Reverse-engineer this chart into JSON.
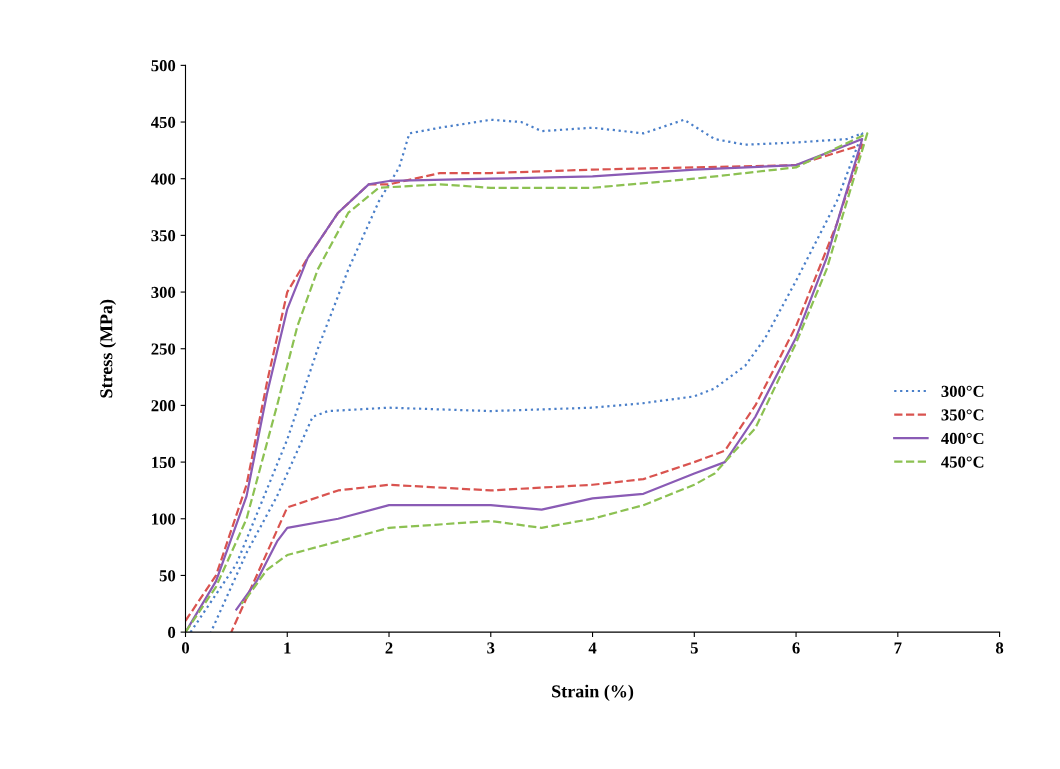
{
  "chart_data": {
    "type": "line",
    "xlabel": "Strain (%)",
    "ylabel": "Stress (MPa)",
    "xlim": [
      0,
      8
    ],
    "ylim": [
      0,
      500
    ],
    "xticks": [
      0,
      1,
      2,
      3,
      4,
      5,
      6,
      7,
      8
    ],
    "yticks": [
      0,
      50,
      100,
      150,
      200,
      250,
      300,
      350,
      400,
      450,
      500
    ],
    "grid": false,
    "legend": "right",
    "marker": "none",
    "series": [
      {
        "name": "300°C",
        "color": "#4a7fc9",
        "line_style": "dotted",
        "x": [
          0.05,
          0.5,
          1.0,
          1.3,
          1.6,
          1.9,
          2.1,
          2.2,
          2.5,
          3.0,
          3.3,
          3.5,
          4.0,
          4.5,
          4.9,
          5.2,
          5.5,
          6.0,
          6.5,
          6.65,
          6.4,
          6.0,
          5.7,
          5.5,
          5.2,
          5.0,
          4.5,
          4.0,
          3.0,
          2.0,
          1.4,
          1.25,
          1.1,
          0.9,
          0.6,
          0.4,
          0.25
        ],
        "values": [
          0,
          60,
          170,
          250,
          320,
          380,
          410,
          440,
          445,
          452,
          450,
          442,
          445,
          440,
          452,
          435,
          430,
          432,
          435,
          440,
          380,
          310,
          260,
          235,
          215,
          208,
          202,
          198,
          195,
          198,
          195,
          190,
          160,
          120,
          70,
          30,
          0
        ]
      },
      {
        "name": "350°C",
        "color": "#d9534f",
        "line_style": "dashed",
        "x": [
          0,
          0.3,
          0.6,
          0.8,
          1.0,
          1.2,
          1.5,
          1.8,
          2.0,
          2.5,
          3,
          4,
          5,
          6,
          6.65,
          6.4,
          6.0,
          5.6,
          5.3,
          5.0,
          4.5,
          4,
          3,
          2.0,
          1.5,
          1.0,
          0.9,
          0.7,
          0.5,
          0.45
        ],
        "values": [
          10,
          50,
          130,
          220,
          300,
          330,
          370,
          395,
          395,
          405,
          405,
          408,
          410,
          412,
          430,
          360,
          270,
          200,
          160,
          150,
          135,
          130,
          125,
          130,
          125,
          110,
          90,
          50,
          10,
          0
        ]
      },
      {
        "name": "400°C",
        "color": "#8a5bb5",
        "line_style": "solid",
        "x": [
          0,
          0.3,
          0.6,
          0.8,
          1.0,
          1.2,
          1.5,
          1.8,
          2.0,
          3,
          4,
          5,
          6,
          6.65,
          6.3,
          6.0,
          5.6,
          5.3,
          5.0,
          4.5,
          4.0,
          3.5,
          3.0,
          2.0,
          1.5,
          1.0,
          0.9,
          0.7,
          0.5
        ],
        "values": [
          0,
          45,
          120,
          210,
          285,
          330,
          370,
          395,
          398,
          400,
          402,
          408,
          412,
          435,
          330,
          260,
          190,
          150,
          140,
          122,
          118,
          108,
          112,
          112,
          100,
          92,
          80,
          45,
          20
        ]
      },
      {
        "name": "450°C",
        "color": "#8cc152",
        "line_style": "dashed",
        "x": [
          0,
          0.3,
          0.6,
          0.9,
          1.1,
          1.3,
          1.6,
          1.9,
          2.5,
          3,
          4,
          5,
          6,
          6.7,
          6.3,
          6.0,
          5.6,
          5.2,
          5.0,
          4.5,
          4.0,
          3.5,
          3.0,
          2.0,
          1.5,
          1.0,
          0.8,
          0.6,
          0.55
        ],
        "values": [
          0,
          40,
          100,
          200,
          270,
          320,
          370,
          392,
          395,
          392,
          392,
          400,
          410,
          440,
          320,
          255,
          180,
          140,
          130,
          112,
          100,
          92,
          98,
          92,
          80,
          68,
          55,
          30,
          25
        ]
      }
    ]
  }
}
